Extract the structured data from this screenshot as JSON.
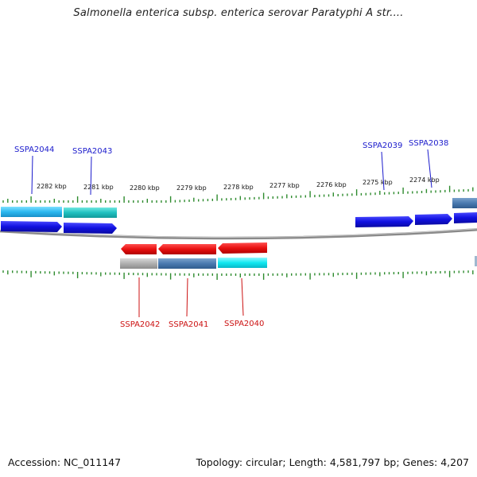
{
  "title": "Salmonella enterica subsp. enterica serovar Paratyphi A str....",
  "footer": {
    "accession": "Accession: NC_011147",
    "summary": "Topology: circular; Length: 4,581,797 bp; Genes: 4,207"
  },
  "colors": {
    "backbone": "#8a8a8a",
    "tick": "#2e8b2e",
    "forward_gene_label": "#1a1acc",
    "reverse_gene_label": "#cc1111",
    "forward_cds": "#1010e0",
    "reverse_cds": "#e81010"
  },
  "scale_labels": [
    "2282 kbp",
    "2281 kbp",
    "2280 kbp",
    "2279 kbp",
    "2278 kbp",
    "2277 kbp",
    "2276 kbp",
    "2275 kbp",
    "2274 kbp"
  ],
  "genes": [
    {
      "name": "SSPA2044",
      "strand": "forward"
    },
    {
      "name": "SSPA2043",
      "strand": "forward"
    },
    {
      "name": "SSPA2039",
      "strand": "forward"
    },
    {
      "name": "SSPA2038",
      "strand": "forward"
    },
    {
      "name": "SSPA2042",
      "strand": "reverse"
    },
    {
      "name": "SSPA2041",
      "strand": "reverse"
    },
    {
      "name": "SSPA2040",
      "strand": "reverse"
    }
  ]
}
